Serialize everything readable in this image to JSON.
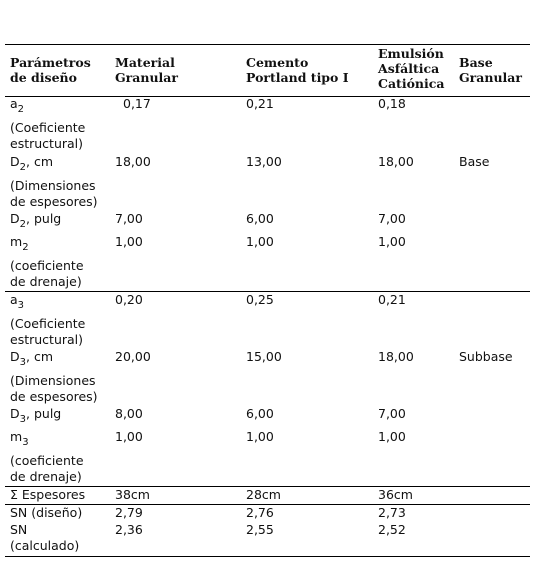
{
  "table": {
    "header": [
      "Parámetros\nde diseño",
      "Material\nGranular",
      "Cemento\nPortland tipo I",
      "Emulsión\nAsfáltica\nCatiónica",
      "Base\nGranular"
    ],
    "rows": [
      {
        "label": {
          "base": "a",
          "sub": "2"
        },
        "cells": [
          "0,17",
          "0,21",
          "0,18"
        ],
        "note": "(Coeficiente\nestructural)"
      },
      {
        "label": {
          "base": "D",
          "sub": "2",
          "suffix": ", cm"
        },
        "cells": [
          "18,00",
          "13,00",
          "18,00"
        ],
        "layer": "Base",
        "note": "(Dimensiones\nde espesores)"
      },
      {
        "label": {
          "base": "D",
          "sub": "2",
          "suffix": ", pulg"
        },
        "cells": [
          "7,00",
          "6,00",
          "7,00"
        ]
      },
      {
        "label": {
          "base": "m",
          "sub": "2"
        },
        "cells": [
          "1,00",
          "1,00",
          "1,00"
        ],
        "note": "(coeficiente\nde drenaje)"
      },
      {
        "label": {
          "base": "a",
          "sub": "3"
        },
        "cells": [
          "0,20",
          "0,25",
          "0,21"
        ],
        "note": "(Coeficiente\nestructural)"
      },
      {
        "label": {
          "base": "D",
          "sub": "3",
          "suffix": ", cm"
        },
        "cells": [
          "20,00",
          "15,00",
          "18,00"
        ],
        "layer": "Subbase",
        "note": "(Dimensiones\nde espesores)"
      },
      {
        "label": {
          "base": "D",
          "sub": "3",
          "suffix": ", pulg"
        },
        "cells": [
          "8,00",
          "6,00",
          "7,00"
        ]
      },
      {
        "label": {
          "base": "m",
          "sub": "3"
        },
        "cells": [
          "1,00",
          "1,00",
          "1,00"
        ],
        "note": "(coeficiente\nde drenaje)"
      },
      {
        "label": {
          "base": "Σ Espesores"
        },
        "cells": [
          "38cm",
          "28cm",
          "36cm"
        ]
      },
      {
        "label": {
          "base": "SN (diseño)"
        },
        "cells": [
          "2,79",
          "2,76",
          "2,73"
        ]
      },
      {
        "label": {
          "base": "SN\n(calculado)"
        },
        "cells": [
          "2,36",
          "2,55",
          "2,52"
        ]
      }
    ]
  }
}
